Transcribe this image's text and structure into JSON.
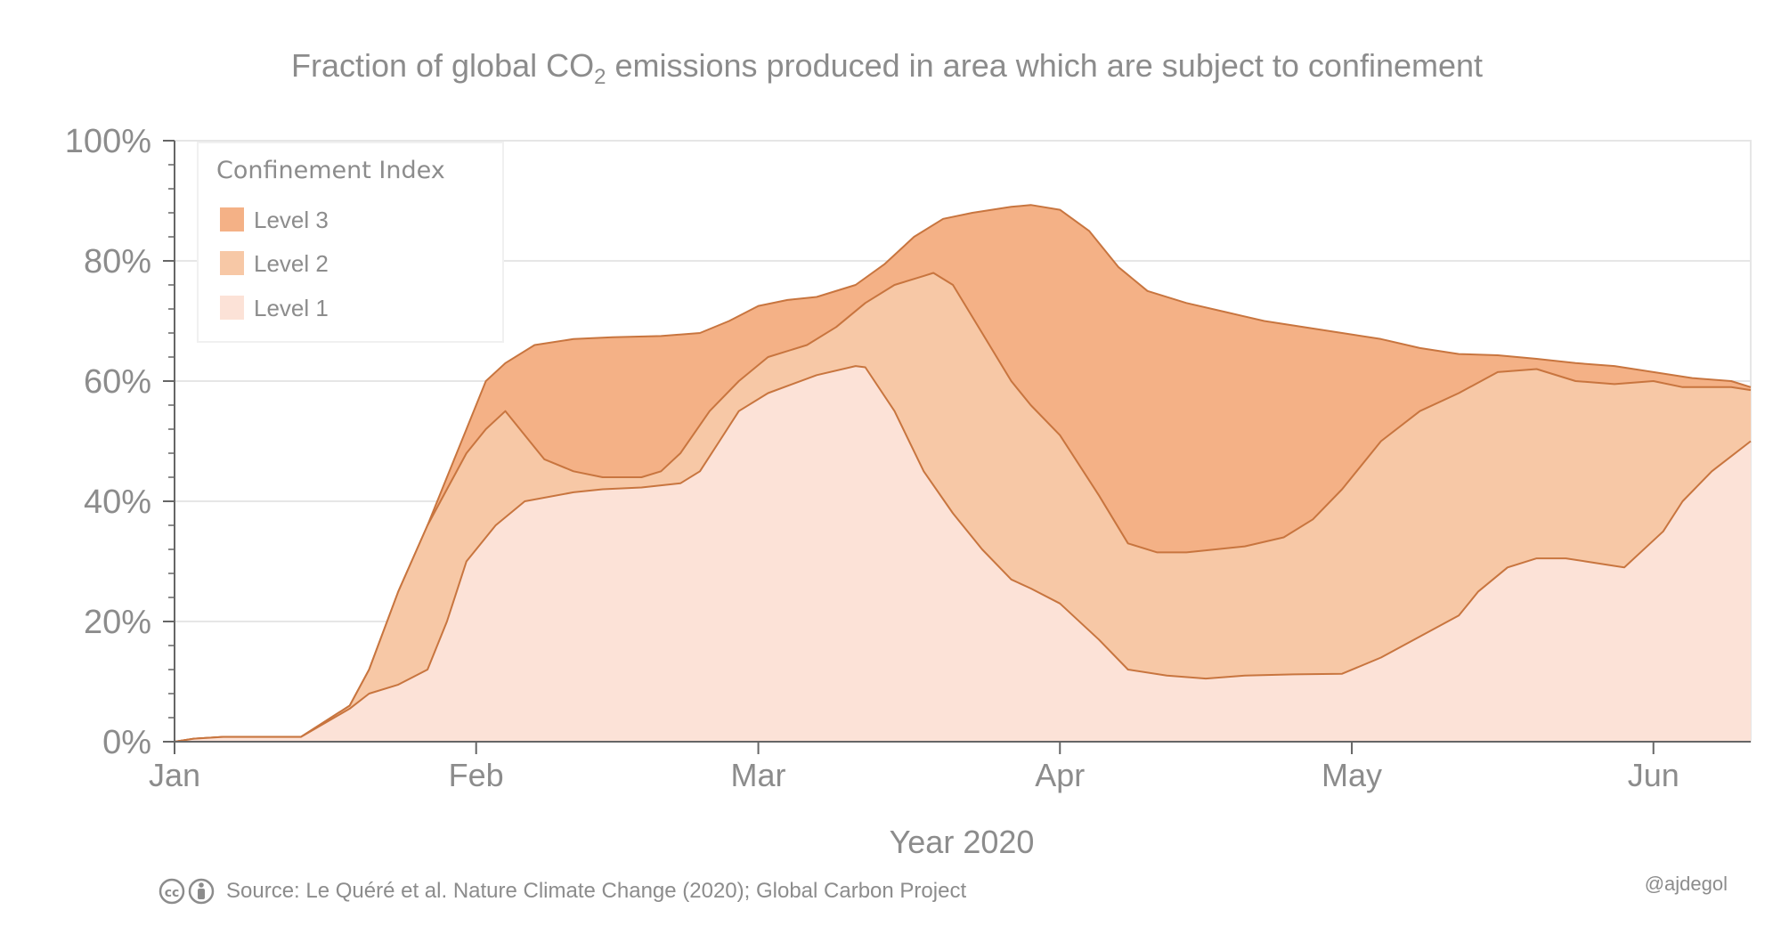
{
  "chart_data": {
    "type": "area",
    "title": "Fraction of global CO",
    "title_subscript": "2",
    "title_suffix": " emissions produced in area which are subject to confinement",
    "xlabel": "Year 2020",
    "ylabel": "",
    "x_unit": "day of year 2020 (Jan 1 = 0)",
    "xlim": [
      0,
      162
    ],
    "ylim": [
      0,
      100
    ],
    "grid": true,
    "x_ticks": [
      {
        "label": "Jan",
        "value": 0
      },
      {
        "label": "Feb",
        "value": 31
      },
      {
        "label": "Mar",
        "value": 60
      },
      {
        "label": "Apr",
        "value": 91
      },
      {
        "label": "May",
        "value": 121
      },
      {
        "label": "Jun",
        "value": 152
      }
    ],
    "y_ticks": [
      {
        "label": "0%",
        "value": 0
      },
      {
        "label": "20%",
        "value": 20
      },
      {
        "label": "40%",
        "value": 40
      },
      {
        "label": "60%",
        "value": 60
      },
      {
        "label": "80%",
        "value": 80
      },
      {
        "label": "100%",
        "value": 100
      }
    ],
    "legend": {
      "title": "Confinement Index",
      "position": "top-left",
      "items": [
        "Level 3",
        "Level 2",
        "Level 1"
      ]
    },
    "series": [
      {
        "name": "Level 1",
        "color": "#fce2d7",
        "stroke": "#c8753f",
        "points": [
          [
            0,
            0
          ],
          [
            2,
            0.5
          ],
          [
            5,
            0.8
          ],
          [
            13,
            0.8
          ],
          [
            18,
            5.5
          ],
          [
            20,
            8
          ],
          [
            23,
            9.5
          ],
          [
            26,
            12
          ],
          [
            28,
            20
          ],
          [
            30,
            30
          ],
          [
            33,
            36
          ],
          [
            36,
            40
          ],
          [
            41,
            41.5
          ],
          [
            44,
            42
          ],
          [
            48,
            42.3
          ],
          [
            52,
            43
          ],
          [
            54,
            45
          ],
          [
            56,
            50
          ],
          [
            58,
            55
          ],
          [
            61,
            58
          ],
          [
            66,
            61
          ],
          [
            70,
            62.5
          ],
          [
            71,
            62.3
          ],
          [
            74,
            55
          ],
          [
            77,
            45
          ],
          [
            80,
            38
          ],
          [
            83,
            32
          ],
          [
            86,
            27
          ],
          [
            88,
            25.5
          ],
          [
            91,
            23
          ],
          [
            95,
            17
          ],
          [
            98,
            12
          ],
          [
            102,
            11
          ],
          [
            106,
            10.5
          ],
          [
            110,
            11
          ],
          [
            115,
            11.2
          ],
          [
            120,
            11.3
          ],
          [
            124,
            14
          ],
          [
            128,
            17.5
          ],
          [
            132,
            21
          ],
          [
            134,
            25
          ],
          [
            137,
            29
          ],
          [
            140,
            30.5
          ],
          [
            143,
            30.5
          ],
          [
            145,
            30
          ],
          [
            149,
            29
          ],
          [
            153,
            35
          ],
          [
            155,
            40
          ],
          [
            158,
            45
          ],
          [
            162,
            50
          ]
        ]
      },
      {
        "name": "Level 2",
        "color": "#f7c8a6",
        "stroke": "#c8753f",
        "points": [
          [
            0,
            0
          ],
          [
            2,
            0.5
          ],
          [
            5,
            0.8
          ],
          [
            13,
            0.8
          ],
          [
            18,
            6
          ],
          [
            20,
            12
          ],
          [
            23,
            25
          ],
          [
            26,
            36
          ],
          [
            28,
            42
          ],
          [
            30,
            48
          ],
          [
            32,
            52
          ],
          [
            34,
            55
          ],
          [
            36,
            51
          ],
          [
            38,
            47
          ],
          [
            41,
            45
          ],
          [
            44,
            44
          ],
          [
            48,
            44
          ],
          [
            50,
            45
          ],
          [
            52,
            48
          ],
          [
            55,
            55
          ],
          [
            58,
            60
          ],
          [
            61,
            64
          ],
          [
            65,
            66
          ],
          [
            68,
            69
          ],
          [
            71,
            73
          ],
          [
            74,
            76
          ],
          [
            77,
            77.5
          ],
          [
            78,
            78
          ],
          [
            80,
            76
          ],
          [
            83,
            68
          ],
          [
            86,
            60
          ],
          [
            88,
            56
          ],
          [
            91,
            51
          ],
          [
            95,
            41
          ],
          [
            98,
            33
          ],
          [
            101,
            31.5
          ],
          [
            104,
            31.5
          ],
          [
            107,
            32
          ],
          [
            110,
            32.5
          ],
          [
            114,
            34
          ],
          [
            117,
            37
          ],
          [
            120,
            42
          ],
          [
            124,
            50
          ],
          [
            128,
            55
          ],
          [
            132,
            58
          ],
          [
            136,
            61.5
          ],
          [
            140,
            62
          ],
          [
            144,
            60
          ],
          [
            148,
            59.5
          ],
          [
            152,
            60
          ],
          [
            155,
            59
          ],
          [
            160,
            59
          ],
          [
            162,
            58.5
          ]
        ]
      },
      {
        "name": "Level 3",
        "color": "#f4b186",
        "stroke": "#c8753f",
        "points": [
          [
            0,
            0
          ],
          [
            2,
            0.5
          ],
          [
            5,
            0.8
          ],
          [
            13,
            0.8
          ],
          [
            18,
            6
          ],
          [
            20,
            12
          ],
          [
            23,
            25
          ],
          [
            26,
            36
          ],
          [
            28,
            44
          ],
          [
            30,
            52
          ],
          [
            32,
            60
          ],
          [
            34,
            63
          ],
          [
            37,
            66
          ],
          [
            41,
            67
          ],
          [
            45,
            67.3
          ],
          [
            50,
            67.5
          ],
          [
            54,
            68
          ],
          [
            57,
            70
          ],
          [
            60,
            72.5
          ],
          [
            63,
            73.5
          ],
          [
            66,
            74
          ],
          [
            70,
            76
          ],
          [
            73,
            79.5
          ],
          [
            76,
            84
          ],
          [
            79,
            87
          ],
          [
            82,
            88
          ],
          [
            86,
            89
          ],
          [
            88,
            89.3
          ],
          [
            91,
            88.5
          ],
          [
            94,
            85
          ],
          [
            97,
            79
          ],
          [
            100,
            75
          ],
          [
            104,
            73
          ],
          [
            108,
            71.5
          ],
          [
            112,
            70
          ],
          [
            116,
            69
          ],
          [
            120,
            68
          ],
          [
            124,
            67
          ],
          [
            128,
            65.5
          ],
          [
            132,
            64.5
          ],
          [
            136,
            64.3
          ],
          [
            140,
            63.7
          ],
          [
            144,
            63
          ],
          [
            148,
            62.5
          ],
          [
            152,
            61.5
          ],
          [
            156,
            60.5
          ],
          [
            160,
            60
          ],
          [
            162,
            59
          ]
        ]
      }
    ],
    "caption": "Source: Le Quéré et al. Nature Climate Change (2020); Global Carbon Project",
    "credit": "@ajdegol",
    "license_icons": [
      "cc-icon",
      "by-icon"
    ]
  }
}
